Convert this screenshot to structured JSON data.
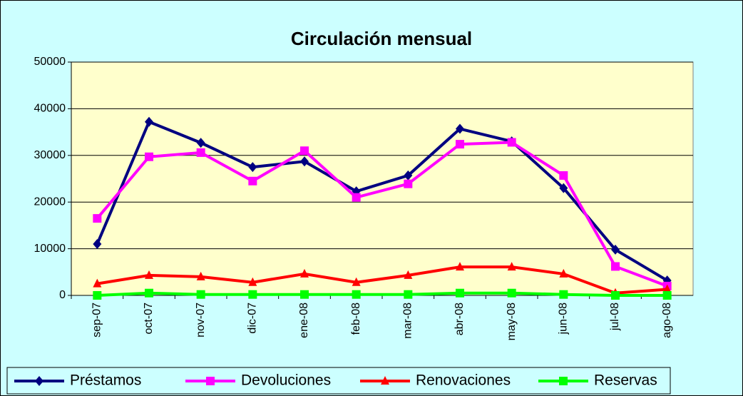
{
  "chart_data": {
    "type": "line",
    "title": "Circulación mensual",
    "categories": [
      "sep-07",
      "oct-07",
      "nov-07",
      "dic-07",
      "ene-08",
      "feb-08",
      "mar-08",
      "abr-08",
      "may-08",
      "jun-08",
      "jul-08",
      "ago-08"
    ],
    "series": [
      {
        "name": "Préstamos",
        "color": "#000080",
        "marker": "diamond",
        "values": [
          11000,
          37200,
          32700,
          27500,
          28700,
          22300,
          25700,
          35700,
          33000,
          23000,
          9800,
          3200
        ]
      },
      {
        "name": "Devoluciones",
        "color": "#ff00ff",
        "marker": "square",
        "values": [
          16500,
          29700,
          30600,
          24500,
          31000,
          21000,
          23900,
          32400,
          32800,
          25700,
          6200,
          2000
        ]
      },
      {
        "name": "Renovaciones",
        "color": "#ff0000",
        "marker": "triangle",
        "values": [
          2500,
          4300,
          4000,
          2800,
          4600,
          2800,
          4300,
          6100,
          6100,
          4600,
          500,
          1300
        ]
      },
      {
        "name": "Reservas",
        "color": "#00ff00",
        "marker": "square",
        "values": [
          0,
          500,
          200,
          200,
          200,
          200,
          200,
          500,
          500,
          200,
          0,
          0
        ]
      }
    ],
    "ylim": [
      0,
      50000
    ],
    "yticks": [
      0,
      10000,
      20000,
      30000,
      40000,
      50000
    ],
    "grid": true,
    "legend": "bottom"
  }
}
